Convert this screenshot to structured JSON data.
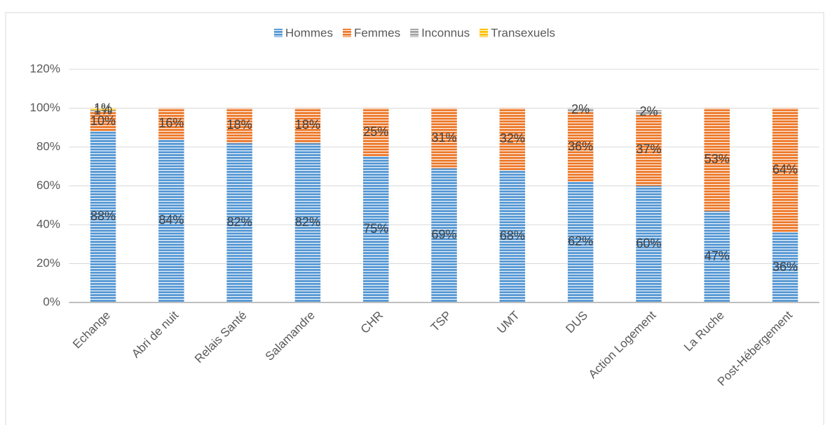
{
  "chart_data": {
    "type": "stacked_bar",
    "categories": [
      "Echange",
      "Abri de nuit",
      "Relais Santé",
      "Salamandre",
      "CHR",
      "TSP",
      "UMT",
      "DUS",
      "Action Logement",
      "La Ruche",
      "Post-Hébergement"
    ],
    "series": [
      {
        "name": "Hommes",
        "color": "#5b9bd5",
        "values": [
          88,
          84,
          82,
          82,
          75,
          69,
          68,
          62,
          60,
          47,
          36
        ],
        "value_labels": [
          "88%",
          "84%",
          "82%",
          "82%",
          "75%",
          "69%",
          "68%",
          "62%",
          "60%",
          "47%",
          "36%"
        ]
      },
      {
        "name": "Femmes",
        "color": "#ed7d31",
        "values": [
          10,
          16,
          18,
          18,
          25,
          31,
          32,
          36,
          37,
          53,
          64
        ],
        "value_labels": [
          "10%",
          "16%",
          "18%",
          "18%",
          "25%",
          "31%",
          "32%",
          "36%",
          "37%",
          "53%",
          "64%"
        ]
      },
      {
        "name": "Inconnus",
        "color": "#a5a5a5",
        "values": [
          1,
          null,
          null,
          null,
          null,
          null,
          null,
          2,
          2,
          null,
          null
        ],
        "value_labels": [
          "1%",
          null,
          null,
          null,
          null,
          null,
          null,
          "2%",
          "2%",
          null,
          null
        ]
      },
      {
        "name": "Transexuels",
        "color": "#ffc000",
        "values": [
          1,
          null,
          null,
          null,
          null,
          null,
          null,
          null,
          null,
          null,
          null
        ],
        "value_labels": [
          "1%",
          null,
          null,
          null,
          null,
          null,
          null,
          null,
          null,
          null,
          null
        ]
      }
    ],
    "ylim": [
      0,
      120
    ],
    "yticks": [
      {
        "value": 0,
        "label": "0%"
      },
      {
        "value": 20,
        "label": "20%"
      },
      {
        "value": 40,
        "label": "40%"
      },
      {
        "value": 60,
        "label": "60%"
      },
      {
        "value": 80,
        "label": "80%"
      },
      {
        "value": 100,
        "label": "100%"
      },
      {
        "value": 120,
        "label": "120%"
      }
    ],
    "grid": true,
    "legend": "top"
  }
}
